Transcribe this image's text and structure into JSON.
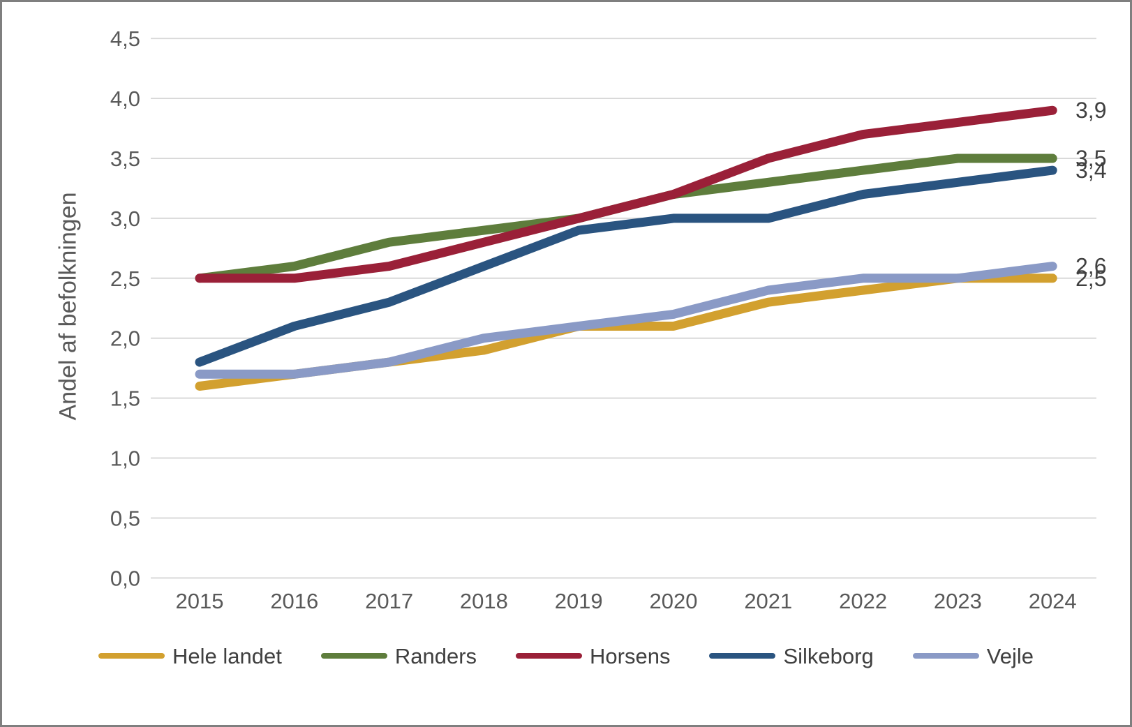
{
  "chart_data": {
    "type": "line",
    "title": "",
    "ylabel": "Andel af befolkningen",
    "xlabel": "",
    "x": [
      "2015",
      "2016",
      "2017",
      "2018",
      "2019",
      "2020",
      "2021",
      "2022",
      "2023",
      "2024"
    ],
    "ylim": [
      0,
      4.5
    ],
    "grid": true,
    "legend_position": "bottom",
    "decimal_separator": ",",
    "y_ticks": [
      {
        "value": 4.5,
        "label": "4,5"
      },
      {
        "value": 4.0,
        "label": "4,0"
      },
      {
        "value": 3.5,
        "label": "3,5"
      },
      {
        "value": 3.0,
        "label": "3,0"
      },
      {
        "value": 2.5,
        "label": "2,5"
      },
      {
        "value": 2.0,
        "label": "2,0"
      },
      {
        "value": 1.5,
        "label": "1,5"
      },
      {
        "value": 1.0,
        "label": "1,0"
      },
      {
        "value": 0.5,
        "label": "0,5"
      },
      {
        "value": 0.0,
        "label": "0,0"
      }
    ],
    "series": [
      {
        "name": "Hele landet",
        "color": "#D2A02F",
        "values": [
          1.6,
          1.7,
          1.8,
          1.9,
          2.1,
          2.1,
          2.3,
          2.4,
          2.5,
          2.5
        ],
        "end_label": "2,5"
      },
      {
        "name": "Randers",
        "color": "#5E7D3C",
        "values": [
          2.5,
          2.6,
          2.8,
          2.9,
          3.0,
          3.2,
          3.3,
          3.4,
          3.5,
          3.5
        ],
        "end_label": "3,5"
      },
      {
        "name": "Horsens",
        "color": "#9A2038",
        "values": [
          2.5,
          2.5,
          2.6,
          2.8,
          3.0,
          3.2,
          3.5,
          3.7,
          3.8,
          3.9
        ],
        "end_label": "3,9"
      },
      {
        "name": "Silkeborg",
        "color": "#2A5480",
        "values": [
          1.8,
          2.1,
          2.3,
          2.6,
          2.9,
          3.0,
          3.0,
          3.2,
          3.3,
          3.4
        ],
        "end_label": "3,4"
      },
      {
        "name": "Vejle",
        "color": "#8A9AC6",
        "values": [
          1.7,
          1.7,
          1.8,
          2.0,
          2.1,
          2.2,
          2.4,
          2.5,
          2.5,
          2.6
        ],
        "end_label": "2,6"
      }
    ],
    "style": {
      "gridline_color": "#D9D9D9",
      "axis_text_color": "#595959",
      "end_label_color": "#404040",
      "line_width": 13
    }
  }
}
